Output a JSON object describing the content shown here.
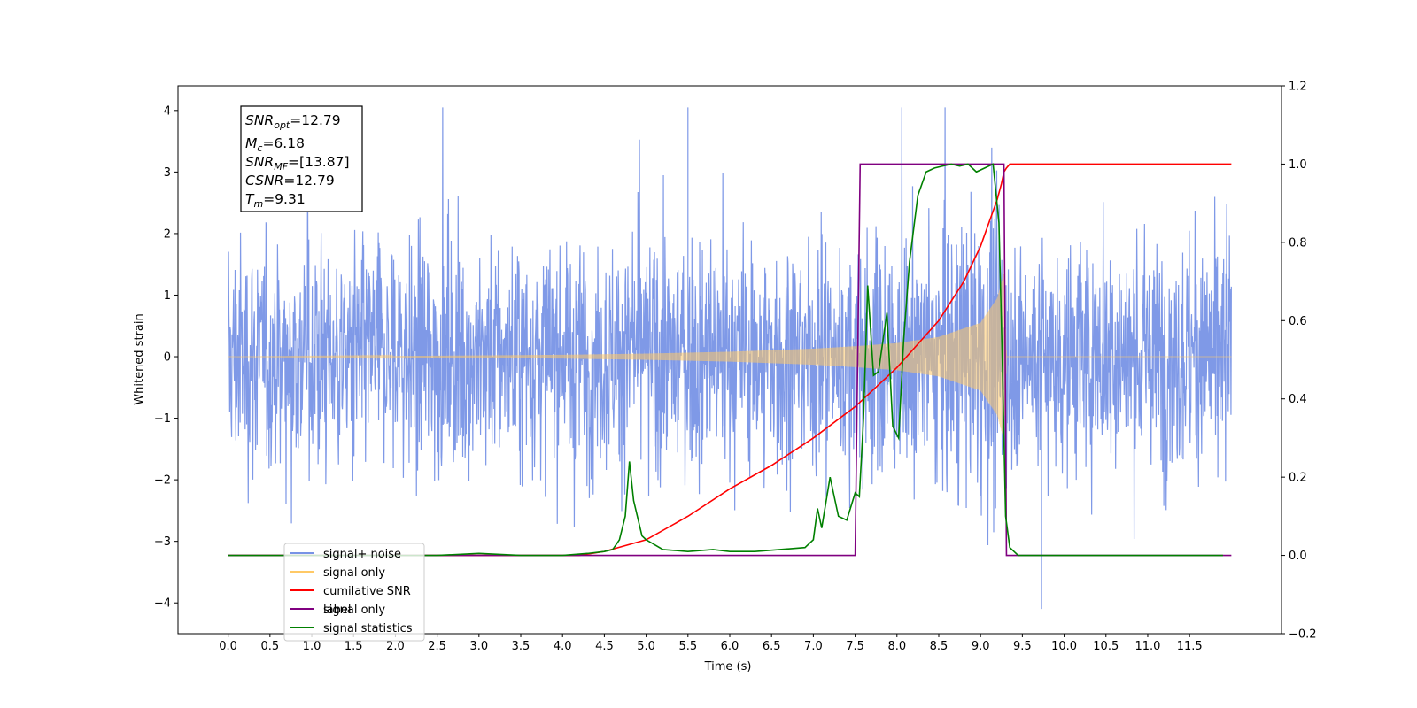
{
  "chart_data": {
    "type": "line",
    "xlabel": "Time (s)",
    "ylabel": "Whitened strain",
    "xlim": [
      -0.6,
      12.6
    ],
    "ylim": [
      -4.5,
      4.4
    ],
    "y2lim": [
      -0.2,
      1.2
    ],
    "x_ticks": [
      "0.0",
      "0.5",
      "1.0",
      "1.5",
      "2.0",
      "2.5",
      "3.0",
      "3.5",
      "4.0",
      "4.5",
      "5.0",
      "5.5",
      "6.0",
      "6.5",
      "7.0",
      "7.5",
      "8.0",
      "8.5",
      "9.0",
      "9.5",
      "10.0",
      "10.5",
      "11.0",
      "11.5"
    ],
    "y_ticks": [
      "4",
      "3",
      "2",
      "1",
      "0",
      "−1",
      "−2",
      "−3",
      "−4"
    ],
    "y2_ticks": [
      "1.2",
      "1.0",
      "0.8",
      "0.6",
      "0.4",
      "0.2",
      "0.0",
      "−0.2"
    ],
    "annotation": [
      {
        "base": "SNR",
        "sub": "opt",
        "value": "=12.79"
      },
      {
        "base": "M",
        "sub": "c",
        "value": "=6.18"
      },
      {
        "base": "SNR",
        "sub": "MF",
        "value": "=[13.87]"
      },
      {
        "base": "CSNR",
        "sub": "",
        "value": "=12.79"
      },
      {
        "base": "T",
        "sub": "m",
        "value": "=9.31"
      }
    ],
    "legend": {
      "placement": "lower-left",
      "entries": [
        {
          "label": "signal+ noise",
          "color": "#7893e6"
        },
        {
          "label": "signal only",
          "color": "#ffc966"
        },
        {
          "label": "cumilative SNR",
          "color": "#ff0000"
        },
        {
          "label": "label",
          "color": "#800080"
        },
        {
          "label": "signal statistics",
          "color": "#008000"
        }
      ],
      "overlapped_text": "signal only"
    },
    "series": [
      {
        "name": "signal+ noise",
        "axis": "left",
        "color": "#7893e6",
        "kind": "noise",
        "x_range": [
          0.0,
          12.0
        ],
        "envelope": [
          [
            0.0,
            1.25
          ],
          [
            7.5,
            1.25
          ],
          [
            9.28,
            1.6
          ],
          [
            9.32,
            1.25
          ],
          [
            12.0,
            1.25
          ]
        ],
        "peaks": [
          4.05,
          -3.95
        ]
      },
      {
        "name": "signal only",
        "axis": "left",
        "color": "#ffc966",
        "kind": "chirp",
        "x_range": [
          0.0,
          12.0
        ],
        "merger": 9.31,
        "envelope": [
          [
            0.0,
            0.0
          ],
          [
            2.0,
            0.01
          ],
          [
            4.0,
            0.03
          ],
          [
            5.0,
            0.05
          ],
          [
            6.0,
            0.08
          ],
          [
            7.0,
            0.13
          ],
          [
            7.5,
            0.17
          ],
          [
            8.0,
            0.22
          ],
          [
            8.5,
            0.32
          ],
          [
            9.0,
            0.55
          ],
          [
            9.2,
            0.95
          ],
          [
            9.28,
            1.35
          ],
          [
            9.31,
            0.0
          ],
          [
            12.0,
            0.0
          ]
        ]
      },
      {
        "name": "cumilative SNR",
        "axis": "right",
        "color": "#ff0000",
        "kind": "line",
        "x": [
          0.0,
          4.2,
          4.5,
          5.0,
          5.5,
          6.0,
          6.5,
          7.0,
          7.5,
          8.0,
          8.5,
          8.8,
          9.0,
          9.1,
          9.2,
          9.25,
          9.28,
          9.31,
          9.35,
          12.0
        ],
        "y": [
          0.0,
          0.0,
          0.01,
          0.04,
          0.1,
          0.17,
          0.23,
          0.3,
          0.38,
          0.48,
          0.6,
          0.7,
          0.79,
          0.85,
          0.91,
          0.95,
          0.98,
          0.99,
          1.0,
          1.0
        ]
      },
      {
        "name": "label",
        "axis": "right",
        "color": "#800080",
        "kind": "line",
        "x": [
          0.0,
          7.5,
          7.56,
          9.28,
          9.31,
          12.0
        ],
        "y": [
          0.0,
          0.0,
          1.0,
          1.0,
          0.0,
          0.0
        ]
      },
      {
        "name": "signal statistics",
        "axis": "right",
        "color": "#008000",
        "kind": "line",
        "x": [
          0.0,
          2.5,
          3.0,
          3.5,
          4.0,
          4.3,
          4.5,
          4.6,
          4.68,
          4.75,
          4.8,
          4.85,
          4.95,
          5.0,
          5.2,
          5.5,
          5.8,
          6.0,
          6.3,
          6.6,
          6.9,
          7.0,
          7.05,
          7.1,
          7.2,
          7.3,
          7.4,
          7.5,
          7.55,
          7.6,
          7.65,
          7.72,
          7.78,
          7.88,
          7.95,
          8.02,
          8.08,
          8.15,
          8.25,
          8.35,
          8.45,
          8.55,
          8.65,
          8.75,
          8.85,
          8.95,
          9.05,
          9.15,
          9.22,
          9.26,
          9.3,
          9.35,
          9.45,
          11.9
        ],
        "y": [
          0.0,
          0.0,
          0.005,
          0.0,
          0.0,
          0.005,
          0.01,
          0.015,
          0.04,
          0.1,
          0.24,
          0.14,
          0.05,
          0.04,
          0.015,
          0.01,
          0.015,
          0.01,
          0.01,
          0.015,
          0.02,
          0.04,
          0.12,
          0.07,
          0.2,
          0.1,
          0.09,
          0.16,
          0.15,
          0.35,
          0.69,
          0.46,
          0.47,
          0.62,
          0.33,
          0.3,
          0.55,
          0.75,
          0.92,
          0.98,
          0.99,
          0.995,
          1.0,
          0.995,
          1.0,
          0.98,
          0.99,
          1.0,
          0.85,
          0.5,
          0.1,
          0.02,
          0.0,
          0.0
        ]
      }
    ]
  }
}
